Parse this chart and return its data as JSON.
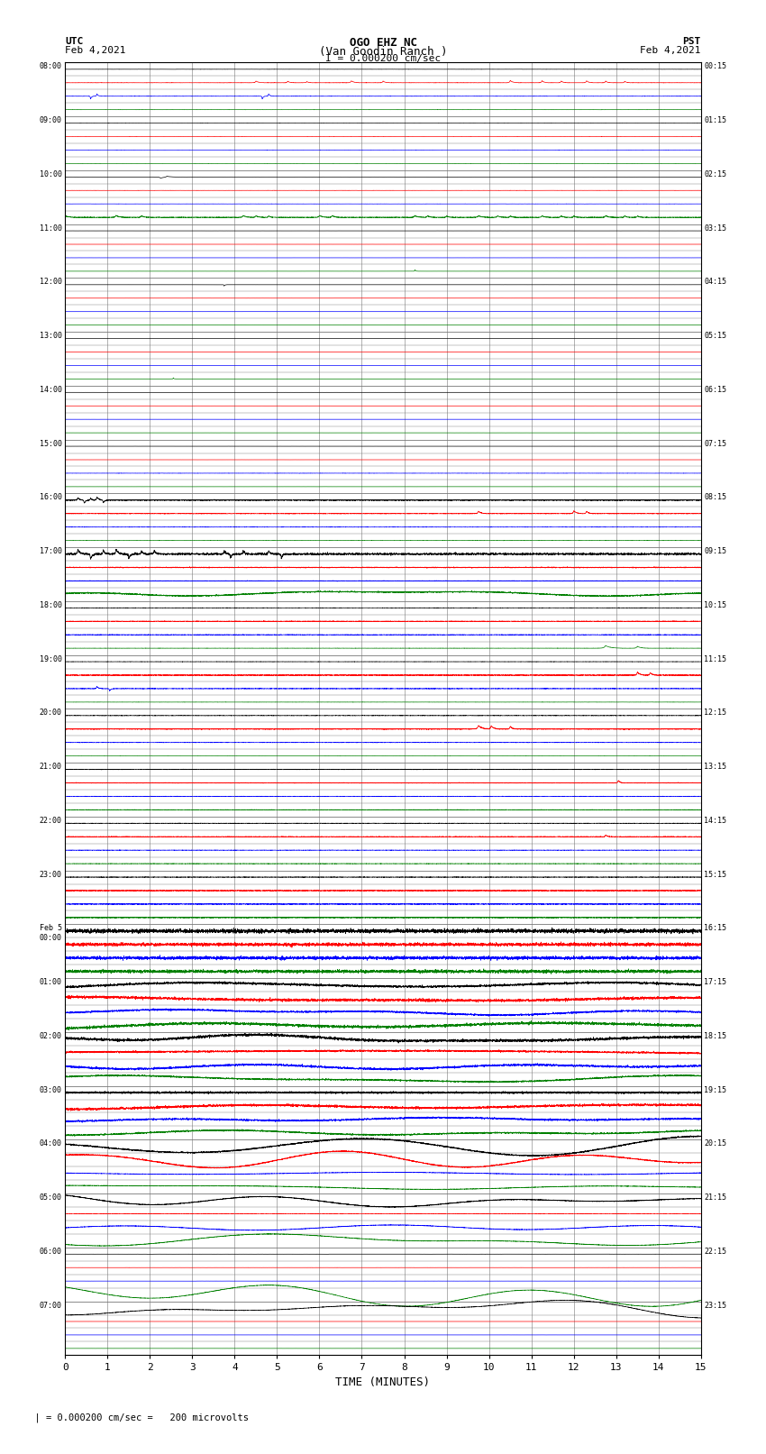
{
  "title_line1": "OGO EHZ NC",
  "title_line2": "(Van Goodin Ranch )",
  "title_line3": "I = 0.000200 cm/sec",
  "left_label_line1": "UTC",
  "left_label_line2": "Feb 4,2021",
  "right_label_line1": "PST",
  "right_label_line2": "Feb 4,2021",
  "xlabel": "TIME (MINUTES)",
  "footer": "= 0.000200 cm/sec =   200 microvolts",
  "bg_color": "#ffffff",
  "utc_labels": [
    "08:00",
    "09:00",
    "10:00",
    "11:00",
    "12:00",
    "13:00",
    "14:00",
    "15:00",
    "16:00",
    "17:00",
    "18:00",
    "19:00",
    "20:00",
    "21:00",
    "22:00",
    "23:00",
    "Feb 5\n00:00",
    "01:00",
    "02:00",
    "03:00",
    "04:00",
    "05:00",
    "06:00",
    "07:00"
  ],
  "pst_labels": [
    "00:15",
    "01:15",
    "02:15",
    "03:15",
    "04:15",
    "05:15",
    "06:15",
    "07:15",
    "08:15",
    "09:15",
    "10:15",
    "11:15",
    "12:15",
    "13:15",
    "14:15",
    "15:15",
    "16:15",
    "17:15",
    "18:15",
    "19:15",
    "20:15",
    "21:15",
    "22:15",
    "23:15"
  ]
}
